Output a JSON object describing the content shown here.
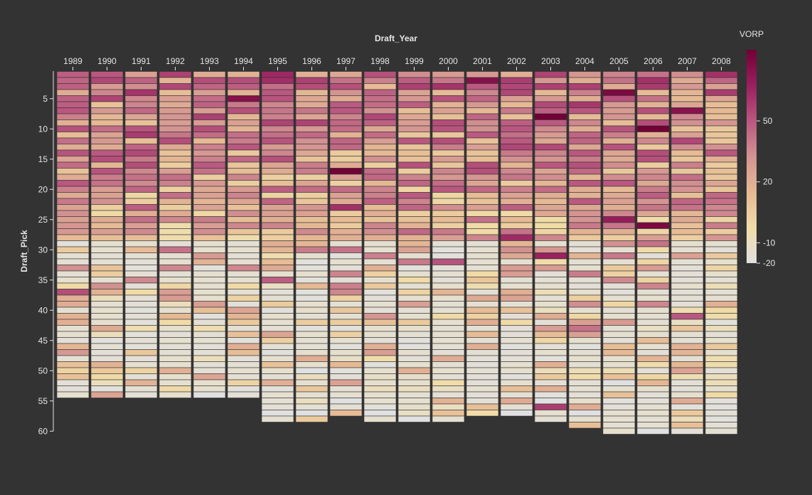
{
  "chart_data": {
    "type": "heatmap",
    "title": "",
    "xlabel": "Draft_Year",
    "ylabel": "Draft_Pick",
    "years": [
      "1989",
      "1990",
      "1991",
      "1992",
      "1993",
      "1994",
      "1995",
      "1996",
      "1997",
      "1998",
      "1999",
      "2000",
      "2001",
      "2002",
      "2003",
      "2004",
      "2005",
      "2006",
      "2007",
      "2008"
    ],
    "y_ticks": [
      5,
      10,
      15,
      20,
      25,
      30,
      35,
      40,
      45,
      50,
      55,
      60
    ],
    "picks_per_year": [
      54,
      54,
      54,
      54,
      54,
      54,
      58,
      58,
      57,
      58,
      58,
      58,
      57,
      57,
      58,
      59,
      60,
      60,
      60,
      60
    ],
    "color_scale": {
      "title": "VORP",
      "domain": [
        -20,
        85
      ],
      "tick_values": [
        50,
        20,
        -10,
        -20
      ],
      "stops": [
        "#e0e0e0",
        "#f0dca8",
        "#e5b994",
        "#d39392",
        "#b9577f",
        "#99205e",
        "#720035"
      ]
    },
    "grid": false,
    "legend_position": "right"
  }
}
